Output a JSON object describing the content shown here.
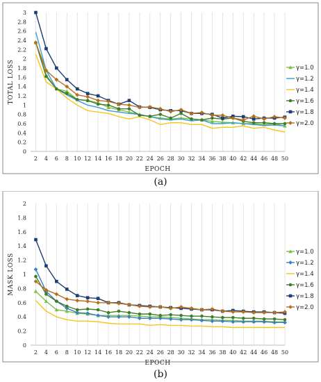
{
  "chart_data": [
    {
      "type": "line",
      "caption": "(a)",
      "xlabel": "EPOCH",
      "ylabel": "TOTAL LOSS",
      "x": [
        2,
        4,
        6,
        8,
        10,
        12,
        14,
        16,
        18,
        20,
        22,
        24,
        26,
        28,
        30,
        32,
        34,
        36,
        38,
        40,
        42,
        44,
        46,
        48,
        50
      ],
      "ylim": [
        0,
        3
      ],
      "yticks": [
        "0",
        "0.2",
        "0.4",
        "0.6",
        "0.8",
        "1",
        "1.2",
        "1.4",
        "1.6",
        "1.8",
        "2",
        "2.2",
        "2.4",
        "2.6",
        "2.8",
        "3"
      ],
      "grid": "vertical",
      "legend": "right",
      "series": [
        {
          "name": "γ=1.0",
          "color": "#7ac143",
          "marker": "triangle",
          "values": [
            2.35,
            1.65,
            1.35,
            1.3,
            1.12,
            1.1,
            1.05,
            0.95,
            0.9,
            0.85,
            0.8,
            0.75,
            0.72,
            0.7,
            0.72,
            0.7,
            0.68,
            0.65,
            0.63,
            0.62,
            0.6,
            0.6,
            0.58,
            0.6,
            0.55
          ]
        },
        {
          "name": "γ=1.2",
          "color": "#3a9ad9",
          "marker": "none",
          "values": [
            2.58,
            1.75,
            1.35,
            1.22,
            1.1,
            1.0,
            0.95,
            0.88,
            0.85,
            0.82,
            0.8,
            0.75,
            0.7,
            0.68,
            0.7,
            0.66,
            0.68,
            0.6,
            0.6,
            0.62,
            0.6,
            0.58,
            0.56,
            0.57,
            0.55
          ]
        },
        {
          "name": "γ=1.4",
          "color": "#f5c518",
          "marker": "none",
          "values": [
            2.1,
            1.5,
            1.35,
            1.15,
            1.0,
            0.88,
            0.85,
            0.82,
            0.75,
            0.7,
            0.75,
            0.68,
            0.58,
            0.62,
            0.62,
            0.58,
            0.58,
            0.5,
            0.52,
            0.52,
            0.55,
            0.5,
            0.52,
            0.46,
            0.42
          ]
        },
        {
          "name": "γ=1.6",
          "color": "#3f7d2c",
          "marker": "circle",
          "values": [
            2.35,
            1.62,
            1.35,
            1.25,
            1.12,
            1.1,
            1.02,
            1.0,
            0.92,
            0.92,
            0.78,
            0.76,
            0.8,
            0.72,
            0.82,
            0.7,
            0.68,
            0.72,
            0.7,
            0.72,
            0.65,
            0.62,
            0.62,
            0.6,
            0.6
          ]
        },
        {
          "name": "γ=1.8",
          "color": "#1f3d73",
          "marker": "square",
          "values": [
            3.0,
            2.22,
            1.8,
            1.55,
            1.35,
            1.25,
            1.2,
            1.1,
            1.02,
            1.1,
            0.96,
            0.95,
            0.9,
            0.88,
            0.88,
            0.82,
            0.82,
            0.8,
            0.72,
            0.76,
            0.75,
            0.7,
            0.72,
            0.72,
            0.74
          ]
        },
        {
          "name": "γ=2.0",
          "color": "#b5701f",
          "marker": "diamond",
          "values": [
            2.35,
            1.75,
            1.55,
            1.4,
            1.22,
            1.18,
            1.1,
            1.08,
            1.02,
            1.0,
            0.95,
            0.96,
            0.92,
            0.86,
            0.9,
            0.82,
            0.84,
            0.78,
            0.78,
            0.72,
            0.68,
            0.76,
            0.7,
            0.75,
            0.72
          ]
        }
      ]
    },
    {
      "type": "line",
      "caption": "(b)",
      "xlabel": "EPOCH",
      "ylabel": "MASK LOSS",
      "x": [
        2,
        4,
        6,
        8,
        10,
        12,
        14,
        16,
        18,
        20,
        22,
        24,
        26,
        28,
        30,
        32,
        34,
        36,
        38,
        40,
        42,
        44,
        46,
        48,
        50
      ],
      "ylim": [
        0,
        2
      ],
      "yticks": [
        "0",
        "0.2",
        "0.4",
        "0.6",
        "0.8",
        "1",
        "1.2",
        "1.4",
        "1.6",
        "1.8",
        "2"
      ],
      "grid": "vertical",
      "legend": "right",
      "series": [
        {
          "name": "γ=1.0",
          "color": "#7ac143",
          "marker": "triangle",
          "values": [
            0.76,
            0.62,
            0.5,
            0.48,
            0.45,
            0.44,
            0.42,
            0.42,
            0.42,
            0.42,
            0.41,
            0.4,
            0.4,
            0.39,
            0.38,
            0.37,
            0.36,
            0.36,
            0.35,
            0.35,
            0.34,
            0.34,
            0.34,
            0.33,
            0.33
          ]
        },
        {
          "name": "γ=1.2",
          "color": "#3a7fc4",
          "marker": "diamond",
          "values": [
            1.07,
            0.76,
            0.62,
            0.52,
            0.46,
            0.45,
            0.42,
            0.4,
            0.4,
            0.4,
            0.38,
            0.38,
            0.38,
            0.37,
            0.36,
            0.36,
            0.35,
            0.34,
            0.34,
            0.33,
            0.33,
            0.33,
            0.33,
            0.32,
            0.32
          ]
        },
        {
          "name": "γ=1.4",
          "color": "#f5c518",
          "marker": "none",
          "values": [
            0.63,
            0.48,
            0.4,
            0.36,
            0.34,
            0.34,
            0.33,
            0.31,
            0.3,
            0.3,
            0.3,
            0.28,
            0.29,
            0.28,
            0.28,
            0.27,
            0.27,
            0.26,
            0.26,
            0.25,
            0.25,
            0.25,
            0.25,
            0.25,
            0.25
          ]
        },
        {
          "name": "γ=1.6",
          "color": "#3f7d2c",
          "marker": "circle",
          "values": [
            0.97,
            0.72,
            0.62,
            0.55,
            0.5,
            0.51,
            0.5,
            0.46,
            0.48,
            0.46,
            0.44,
            0.44,
            0.42,
            0.43,
            0.42,
            0.41,
            0.41,
            0.4,
            0.39,
            0.39,
            0.38,
            0.38,
            0.37,
            0.37,
            0.36
          ]
        },
        {
          "name": "γ=1.8",
          "color": "#1f3d73",
          "marker": "square",
          "values": [
            1.49,
            1.12,
            0.9,
            0.79,
            0.7,
            0.67,
            0.66,
            0.6,
            0.6,
            0.57,
            0.56,
            0.55,
            0.54,
            0.53,
            0.52,
            0.51,
            0.5,
            0.5,
            0.48,
            0.49,
            0.48,
            0.47,
            0.47,
            0.46,
            0.45
          ]
        },
        {
          "name": "γ=2.0",
          "color": "#b5701f",
          "marker": "diamond",
          "values": [
            0.9,
            0.78,
            0.72,
            0.65,
            0.63,
            0.62,
            0.6,
            0.6,
            0.59,
            0.57,
            0.55,
            0.54,
            0.54,
            0.52,
            0.54,
            0.52,
            0.5,
            0.51,
            0.48,
            0.47,
            0.47,
            0.46,
            0.46,
            0.46,
            0.47
          ]
        }
      ]
    }
  ]
}
